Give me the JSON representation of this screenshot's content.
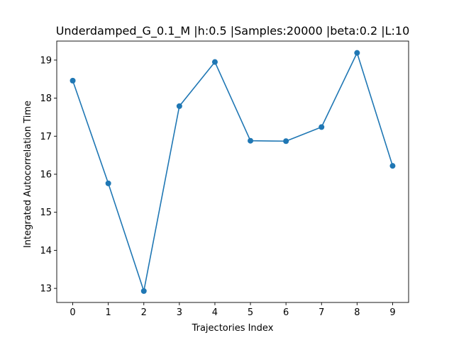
{
  "chart_data": {
    "type": "line",
    "title": "Underdamped_G_0.1_M |h:0.5 |Samples:20000 |beta:0.2 |L:10",
    "xlabel": "Trajectories Index",
    "ylabel": "Integrated Autocorrelation Time",
    "x": [
      0,
      1,
      2,
      3,
      4,
      5,
      6,
      7,
      8,
      9
    ],
    "series": [
      {
        "values": [
          18.46,
          15.76,
          12.93,
          17.79,
          18.95,
          16.88,
          16.87,
          17.24,
          19.19,
          16.22
        ],
        "color": "#1f77b4",
        "marker": "circle"
      }
    ],
    "xlim": [
      -0.45,
      9.45
    ],
    "ylim": [
      12.63,
      19.5
    ],
    "xticks": [
      "0",
      "1",
      "2",
      "3",
      "4",
      "5",
      "6",
      "7",
      "8",
      "9"
    ],
    "yticks": [
      "13",
      "14",
      "15",
      "16",
      "17",
      "18",
      "19"
    ],
    "grid": false,
    "legend": "none"
  }
}
